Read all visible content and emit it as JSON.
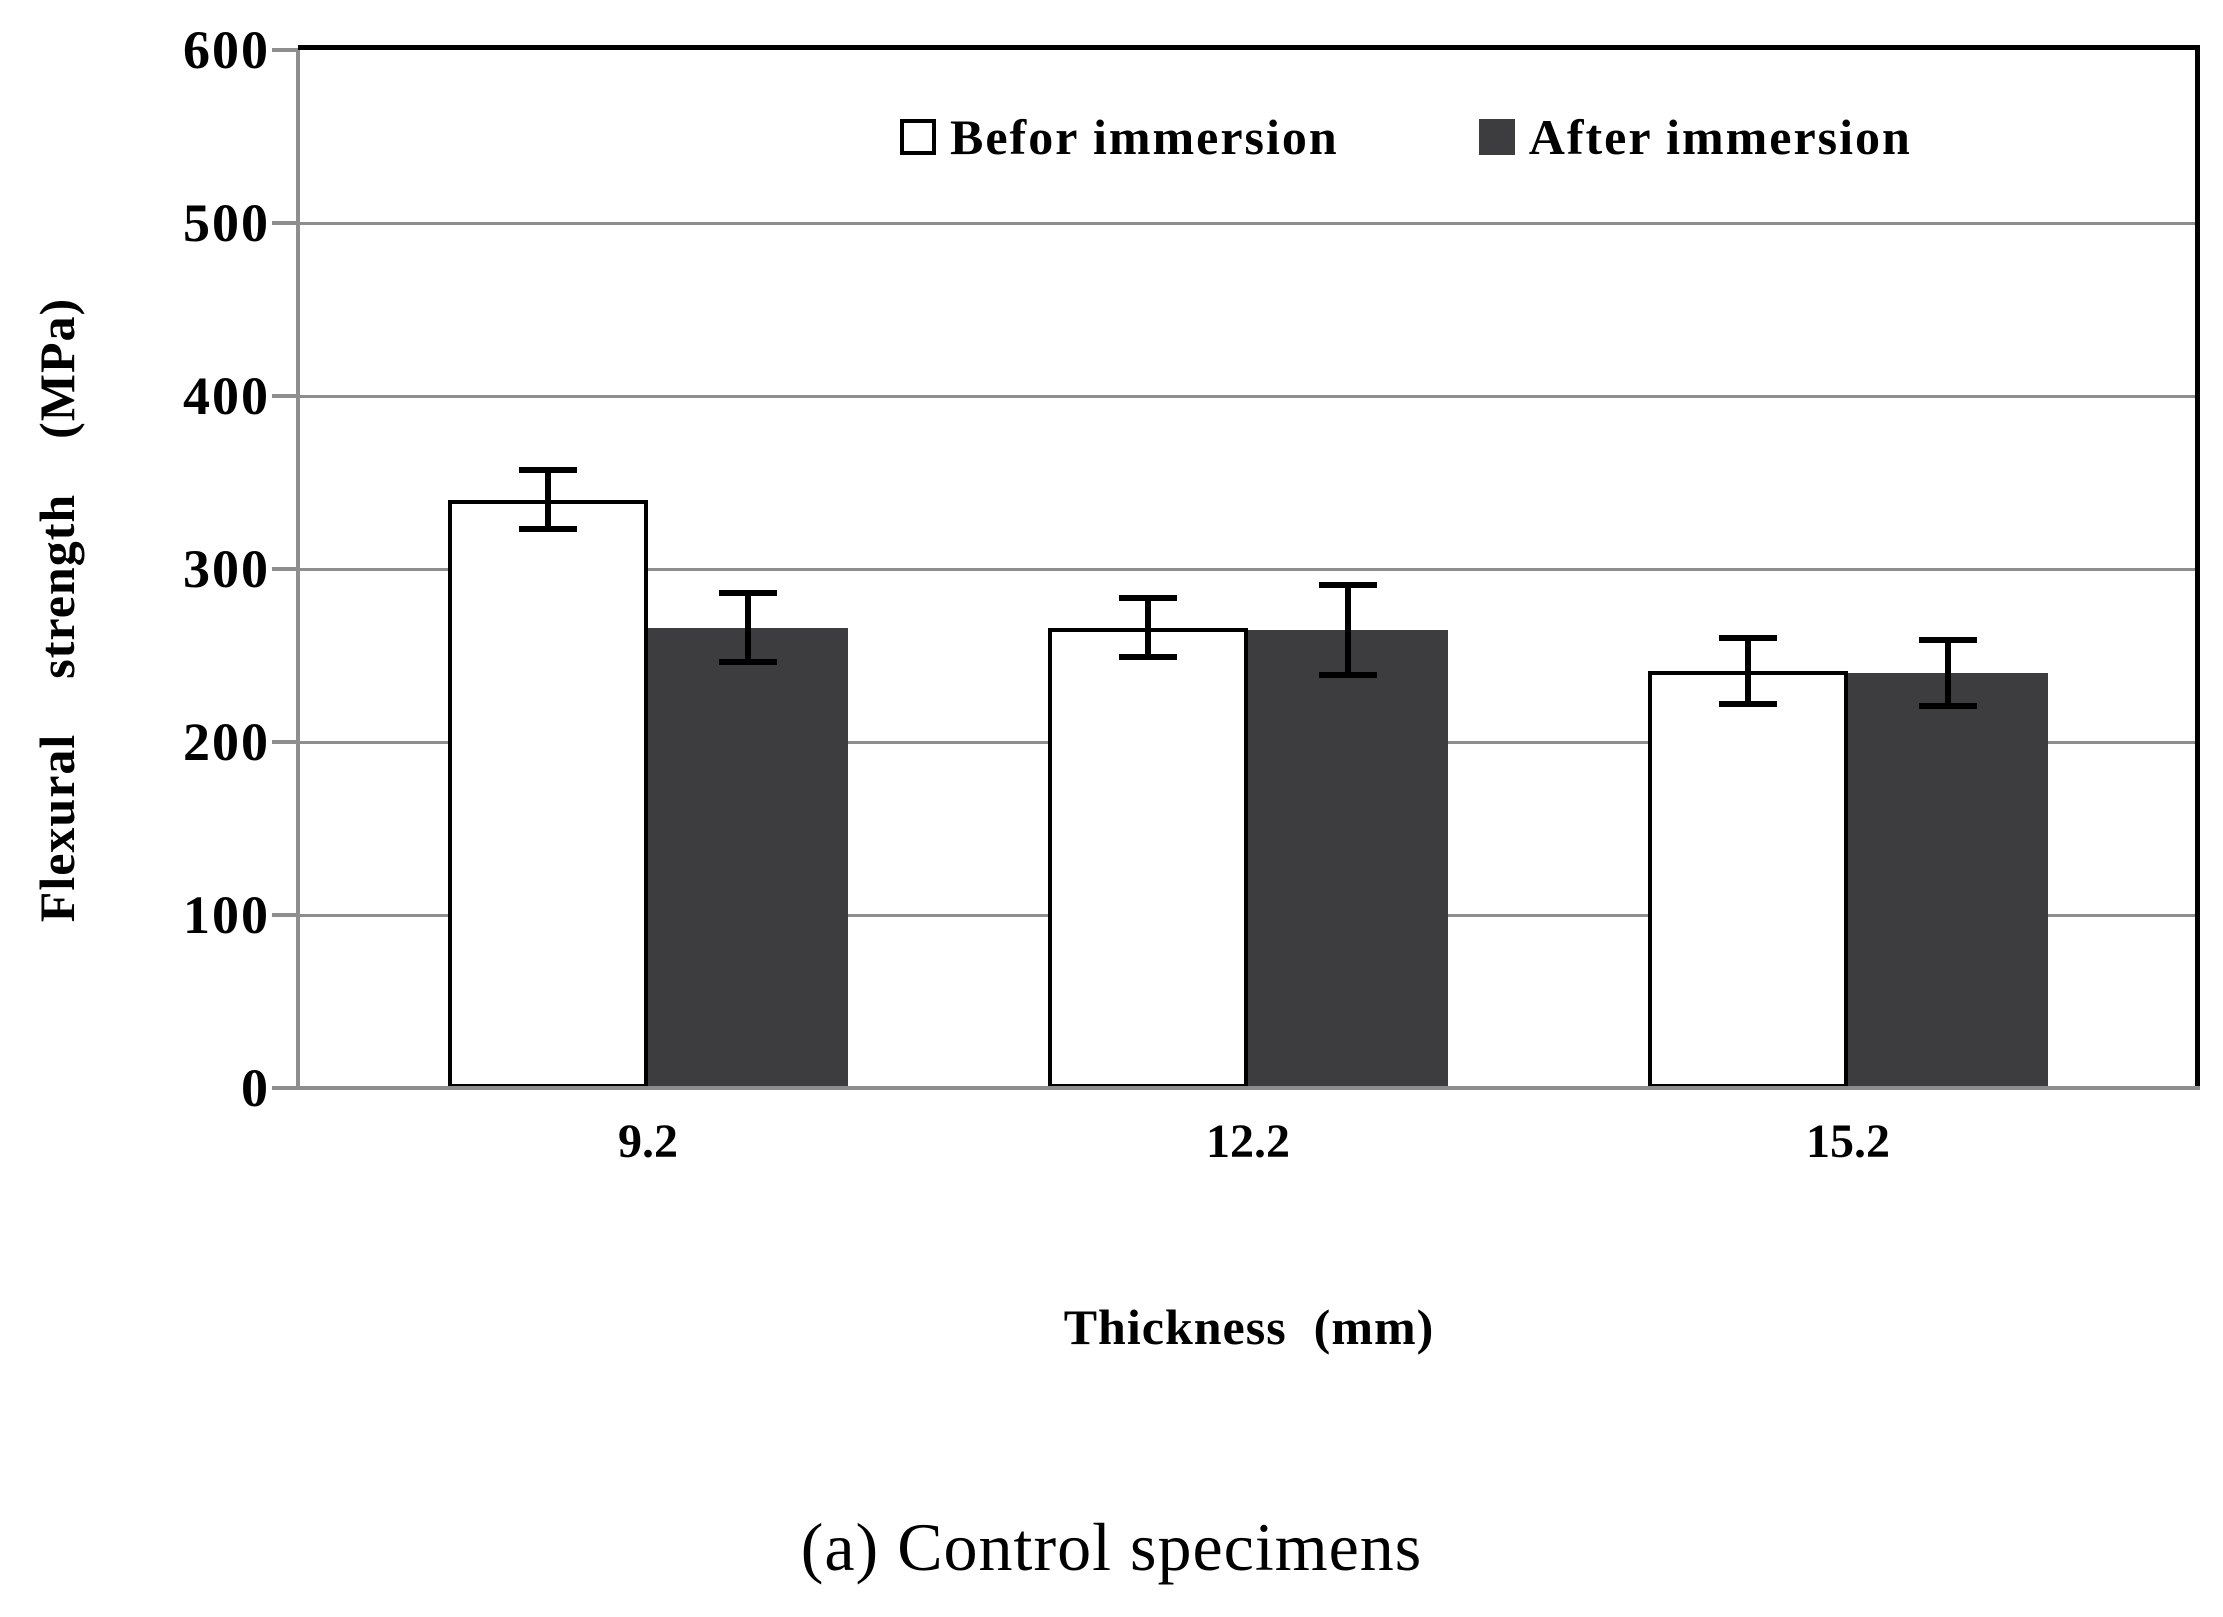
{
  "caption": "(a) Control specimens",
  "chart_data": {
    "type": "bar",
    "title": "",
    "xlabel": "Thickness  (mm)",
    "ylabel": "Flexural  strength  (MPa)",
    "categories": [
      "9.2",
      "12.2",
      "15.2"
    ],
    "series": [
      {
        "name": "Befor immersion",
        "fill": "#FFFFFF",
        "values": [
          340,
          266,
          241
        ],
        "errors": [
          17,
          17,
          19
        ]
      },
      {
        "name": "After immersion",
        "fill": "#3D3D3F",
        "values": [
          266,
          265,
          240
        ],
        "errors": [
          20,
          26,
          19
        ]
      }
    ],
    "ylim": [
      0,
      600
    ],
    "ytick_step": 100,
    "grid": true,
    "legend_position": "top-inside",
    "error_bars": true
  },
  "colors": {
    "axis_gray": "#8E8E8E",
    "bar_dark": "#3D3D3F",
    "bar_light": "#FFFFFF",
    "outline": "#000000",
    "background": "#FFFFFF"
  }
}
